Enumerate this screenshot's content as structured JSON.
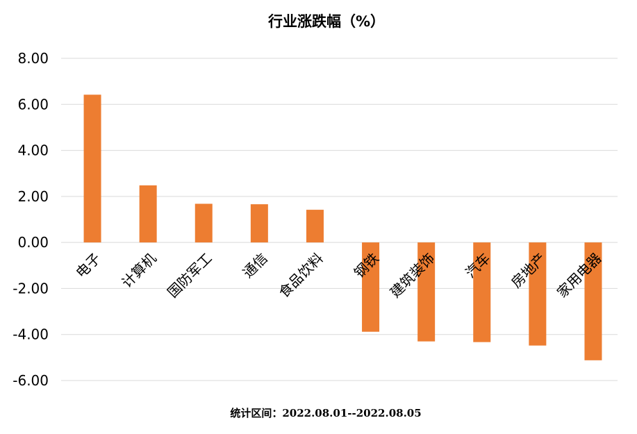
{
  "chart_data": {
    "type": "bar",
    "title": "行业涨跌幅（%）",
    "categories": [
      "电子",
      "计算机",
      "国防军工",
      "通信",
      "食品饮料",
      "钢铁",
      "建筑装饰",
      "汽车",
      "房地产",
      "家用电器"
    ],
    "values": [
      6.42,
      2.48,
      1.68,
      1.66,
      1.42,
      -3.88,
      -4.3,
      -4.33,
      -4.48,
      -5.12
    ],
    "xlabel": "",
    "ylabel": "",
    "ylim": [
      -6,
      8
    ],
    "yticks": [
      "8.00",
      "6.00",
      "4.00",
      "2.00",
      "0.00",
      "-2.00",
      "-4.00",
      "-6.00"
    ],
    "grid": true,
    "bar_color": "#ED7D31",
    "footnote": "统计区间：2022.08.01--2022.08.05"
  }
}
